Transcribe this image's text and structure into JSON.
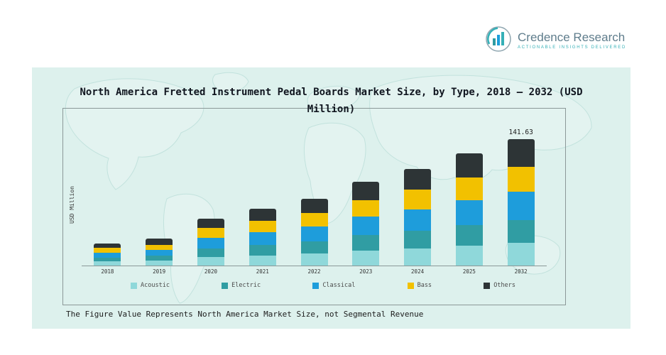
{
  "logo": {
    "name": "Credence Research",
    "tagline": "Actionable Insights Delivered",
    "name_color": "#5f7d8c",
    "tagline_color": "#35b0b7"
  },
  "panel": {
    "background": "#ddf1ed"
  },
  "chart_data": {
    "type": "bar",
    "stacked": true,
    "title": "North America Fretted Instrument Pedal Boards Market Size, by Type, 2018 – 2032 (USD Million)",
    "ylabel": "USD Million",
    "legend_position": "bottom",
    "grid": false,
    "categories": [
      "2018",
      "2019",
      "2020",
      "2021",
      "2022",
      "2023",
      "2024",
      "2025",
      "2032"
    ],
    "series": [
      {
        "name": "Acoustic",
        "color": "#8fd8da",
        "values": [
          4.5,
          5.5,
          9.5,
          11.5,
          13.5,
          17.0,
          19.5,
          22.5,
          25.5
        ]
      },
      {
        "name": "Electric",
        "color": "#309da3",
        "values": [
          4.5,
          5.5,
          9.5,
          11.5,
          13.5,
          17.0,
          19.5,
          22.5,
          25.5
        ]
      },
      {
        "name": "Classical",
        "color": "#1e9ddb",
        "values": [
          5.5,
          6.5,
          12.0,
          14.0,
          16.5,
          20.5,
          24.0,
          28.0,
          31.5
        ]
      },
      {
        "name": "Bass",
        "color": "#f2c100",
        "values": [
          5.0,
          6.0,
          11.0,
          13.0,
          15.0,
          19.0,
          22.0,
          25.5,
          28.5
        ]
      },
      {
        "name": "Others",
        "color": "#2d3436",
        "values": [
          5.5,
          6.5,
          11.0,
          14.0,
          16.5,
          20.5,
          23.0,
          27.5,
          30.63
        ]
      }
    ],
    "totals_estimated": [
      25,
      30,
      53,
      64,
      75,
      94,
      108,
      126,
      141.63
    ],
    "value_labels": {
      "2032": "141.63"
    },
    "footnote": "The Figure Value Represents North America Market Size, not Segmental Revenue"
  }
}
